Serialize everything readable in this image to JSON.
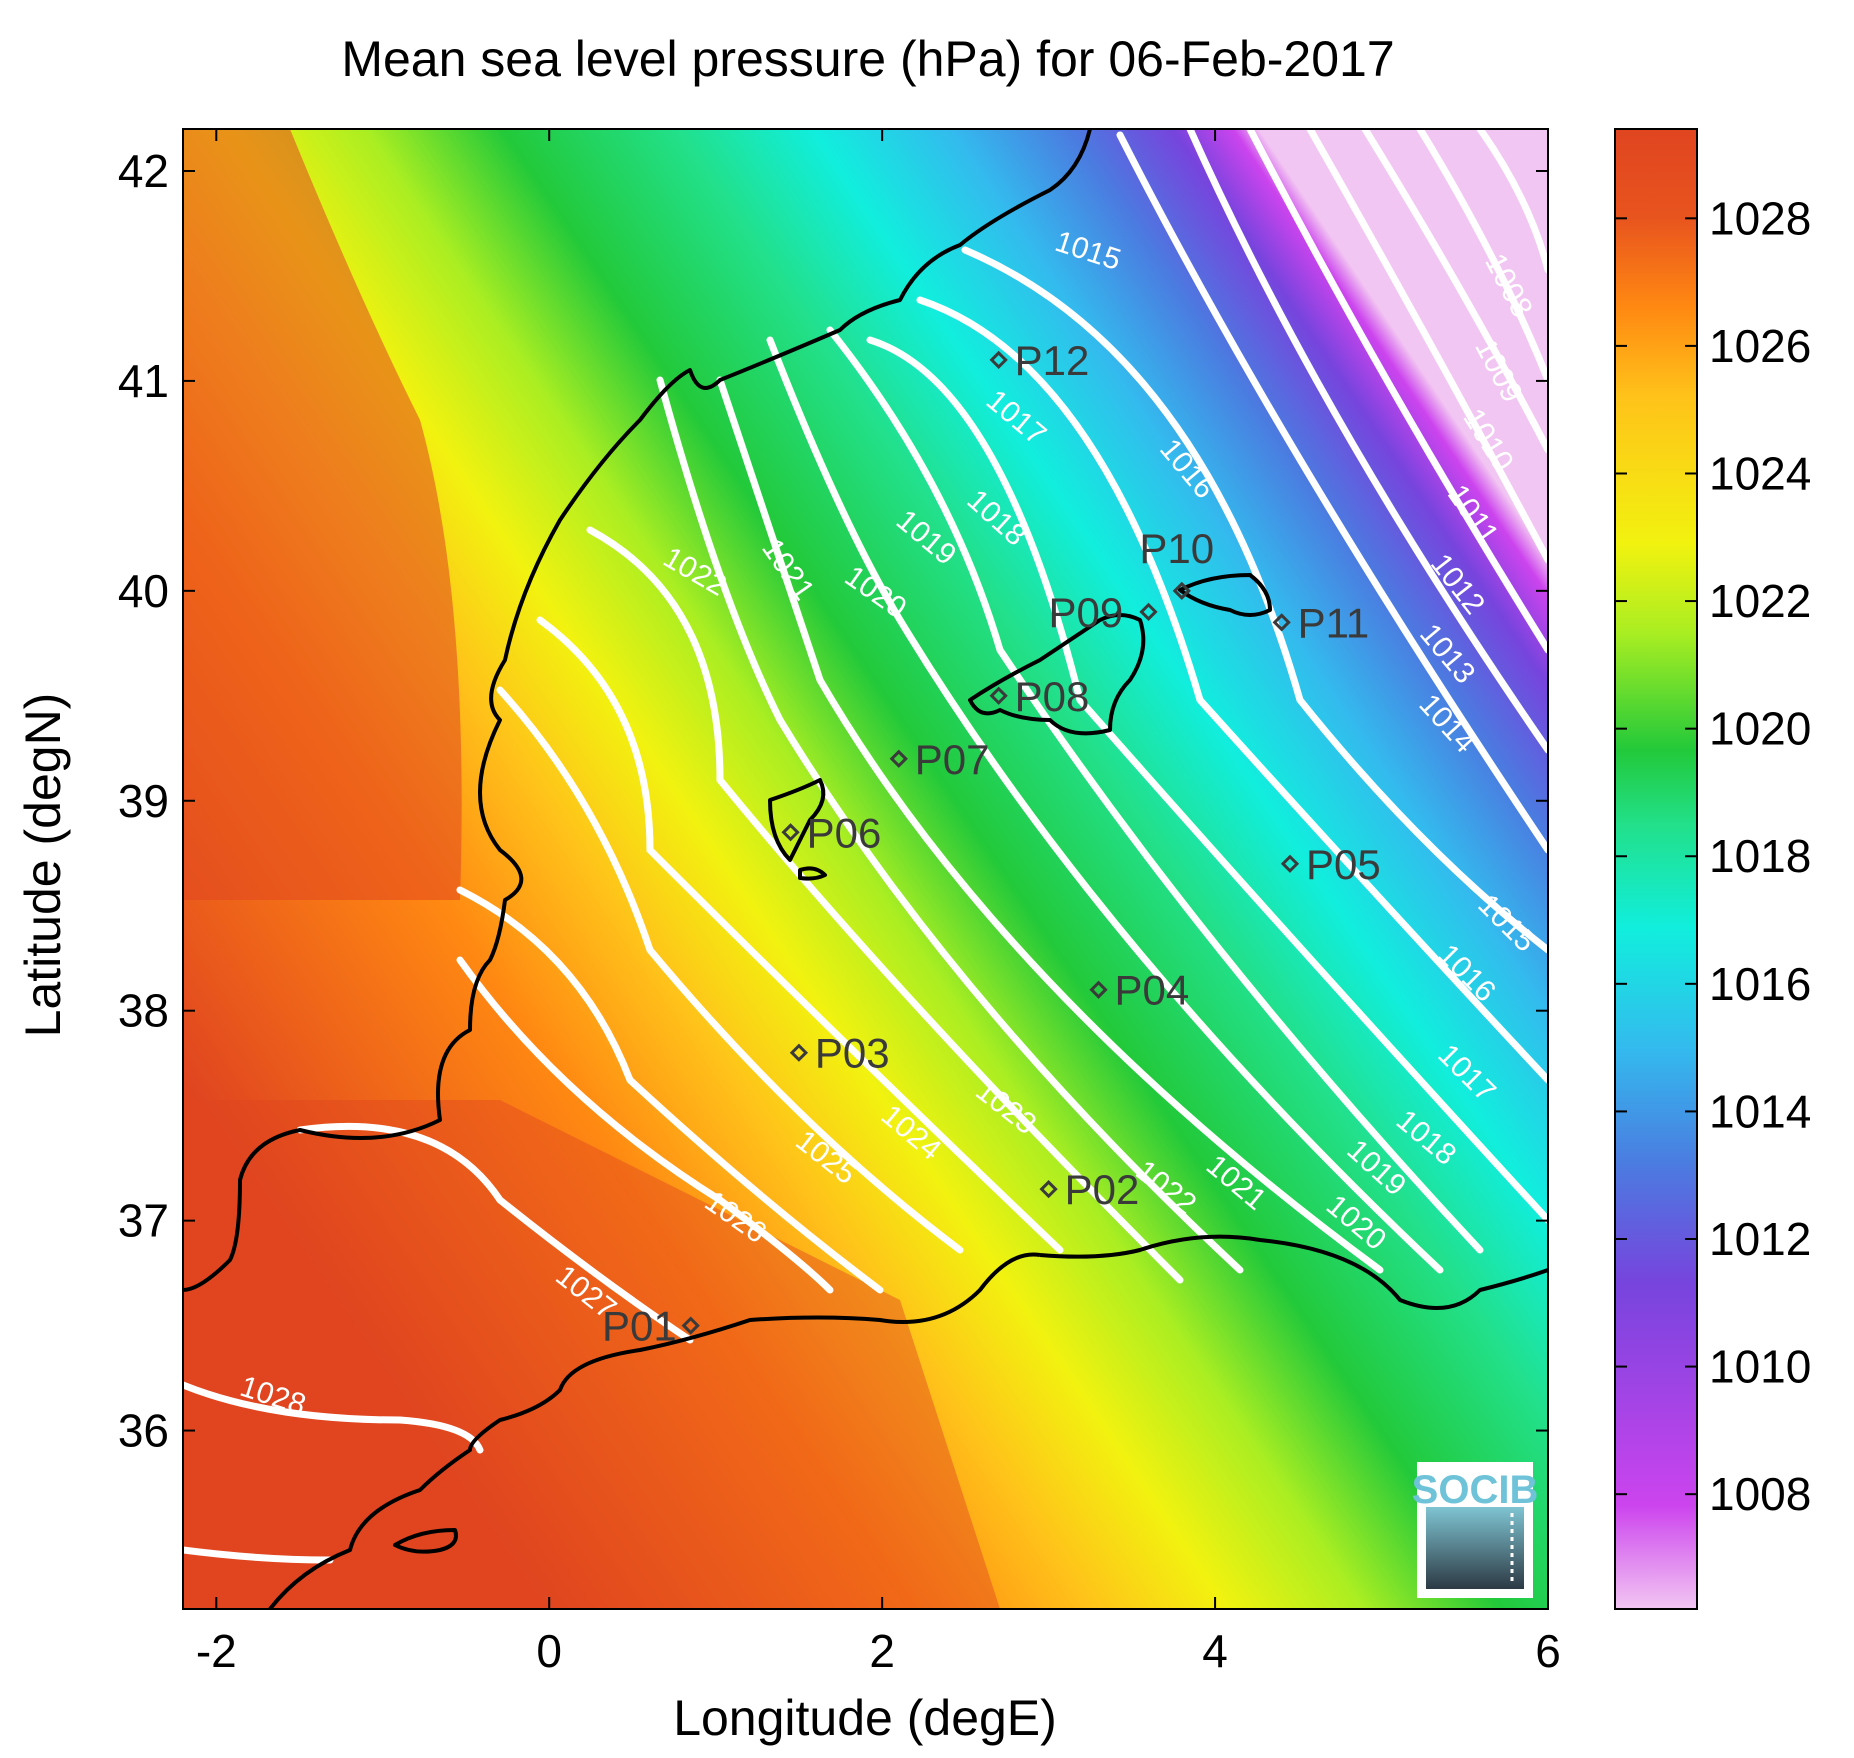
{
  "title": "Mean sea level pressure (hPa) for 06-Feb-2017",
  "xlabel": "Longitude (degE)",
  "ylabel": "Latitude (degN)",
  "x_ticks": [
    "-2",
    "0",
    "2",
    "4",
    "6"
  ],
  "y_ticks": [
    "42",
    "41",
    "40",
    "39",
    "38",
    "37",
    "36"
  ],
  "colorbar_ticks": [
    "1028",
    "1026",
    "1024",
    "1022",
    "1020",
    "1018",
    "1016",
    "1014",
    "1012",
    "1010",
    "1008"
  ],
  "colorbar_range": [
    1006.2,
    1029.4
  ],
  "colormap": [
    "#f2c6f2",
    "#cc44ee",
    "#7744dd",
    "#4b7be0",
    "#33bbee",
    "#11eedd",
    "#22e08a",
    "#22c93a",
    "#aaee22",
    "#f2f20f",
    "#ffc21a",
    "#ff8812",
    "#e8541e",
    "#e04520"
  ],
  "logo_text": "SOCIB",
  "contour_labels": [
    "1008",
    "1009",
    "1010",
    "1011",
    "1012",
    "1013",
    "1014",
    "1015",
    "1015",
    "1016",
    "1016",
    "1017",
    "1017",
    "1018",
    "1018",
    "1019",
    "1019",
    "1020",
    "1020",
    "1021",
    "1021",
    "1022",
    "1022",
    "1023",
    "1024",
    "1025",
    "1026",
    "1027",
    "1028"
  ],
  "stations": [
    {
      "name": "P01",
      "lon": 0.85,
      "lat": 36.5
    },
    {
      "name": "P02",
      "lon": 3.0,
      "lat": 37.15
    },
    {
      "name": "P03",
      "lon": 1.5,
      "lat": 37.8
    },
    {
      "name": "P04",
      "lon": 3.3,
      "lat": 38.1
    },
    {
      "name": "P05",
      "lon": 4.45,
      "lat": 38.7
    },
    {
      "name": "P06",
      "lon": 1.45,
      "lat": 38.85
    },
    {
      "name": "P07",
      "lon": 2.1,
      "lat": 39.2
    },
    {
      "name": "P08",
      "lon": 2.7,
      "lat": 39.5
    },
    {
      "name": "P09",
      "lon": 3.6,
      "lat": 39.9
    },
    {
      "name": "P10",
      "lon": 3.8,
      "lat": 40.0
    },
    {
      "name": "P11",
      "lon": 4.4,
      "lat": 39.85
    },
    {
      "name": "P12",
      "lon": 2.7,
      "lat": 41.1
    }
  ],
  "chart_data": {
    "type": "heatmap",
    "title": "Mean sea level pressure (hPa) for 06-Feb-2017",
    "xlabel": "Longitude (degE)",
    "ylabel": "Latitude (degN)",
    "xlim": [
      -2.2,
      6.0
    ],
    "ylim": [
      35.15,
      42.2
    ],
    "x_ticks": [
      -2,
      0,
      2,
      4,
      6
    ],
    "y_ticks": [
      36,
      37,
      38,
      39,
      40,
      41,
      42
    ],
    "colorbar_ticks": [
      1008,
      1010,
      1012,
      1014,
      1016,
      1018,
      1020,
      1022,
      1024,
      1026,
      1028
    ],
    "contour_levels": [
      1008,
      1009,
      1010,
      1011,
      1012,
      1013,
      1014,
      1015,
      1016,
      1017,
      1018,
      1019,
      1020,
      1021,
      1022,
      1023,
      1024,
      1025,
      1026,
      1027,
      1028
    ],
    "pressure_min": 1006.5,
    "pressure_max": 1029
  }
}
